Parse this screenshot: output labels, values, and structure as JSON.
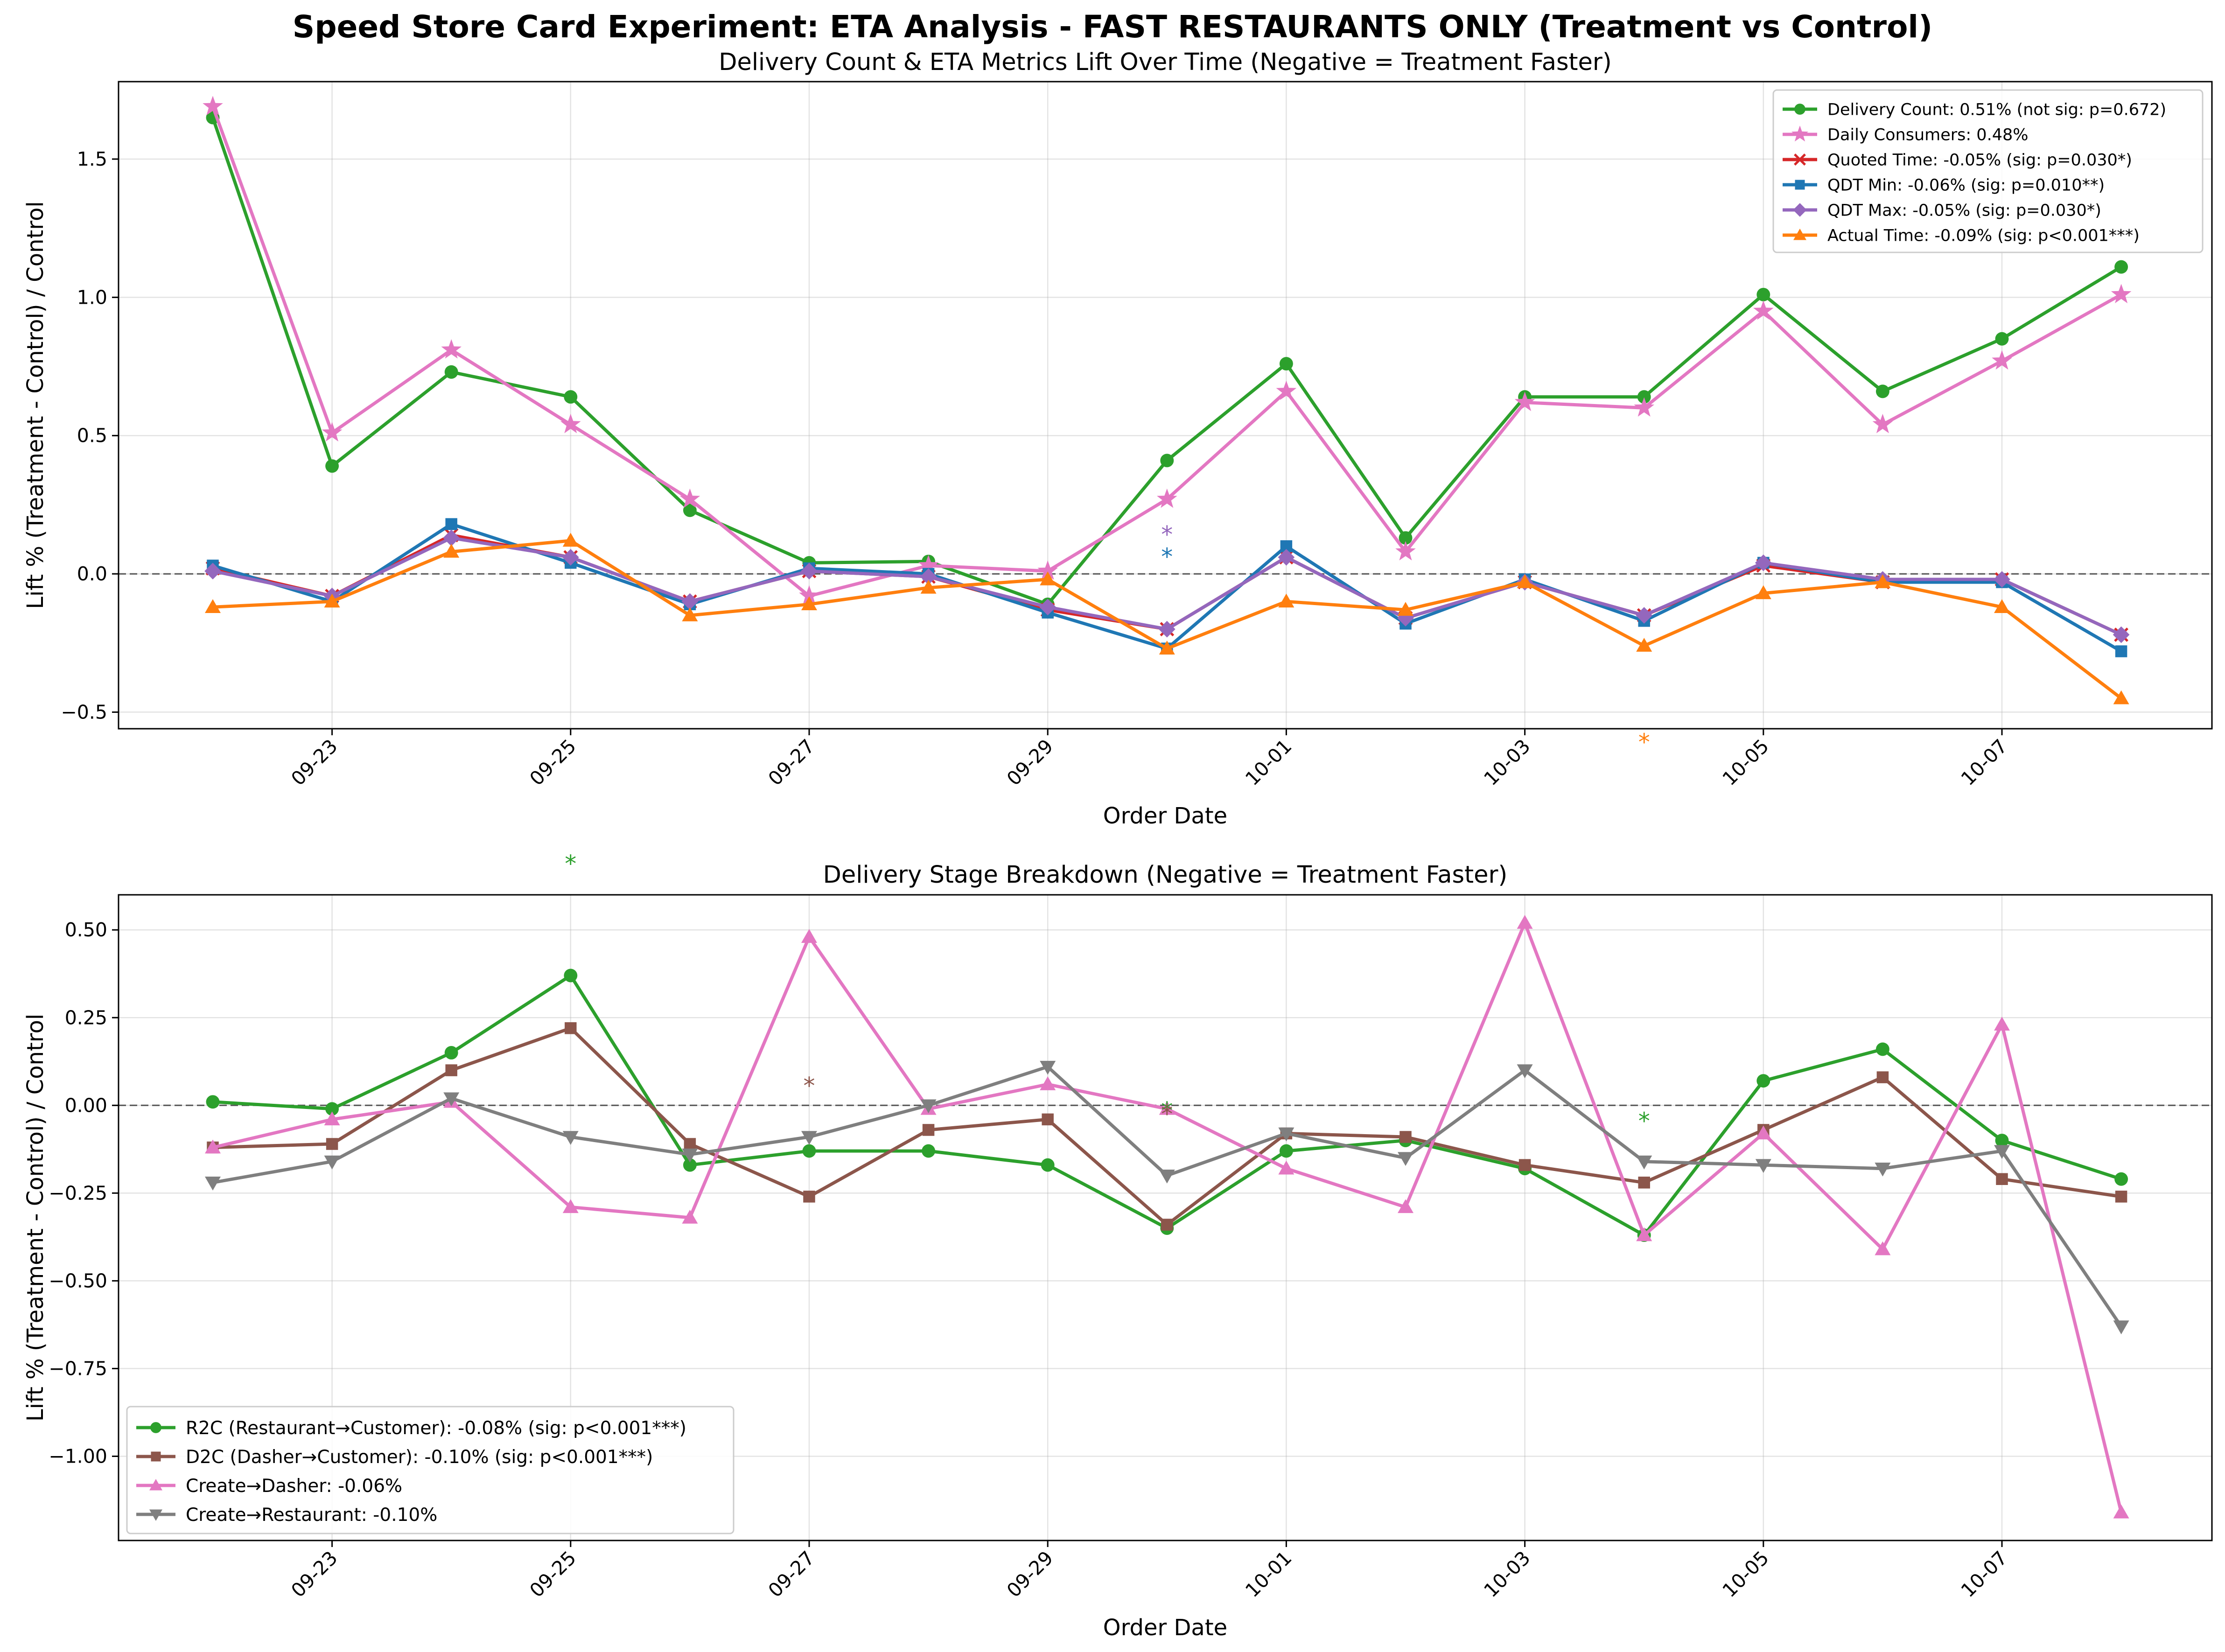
{
  "suptitle": "Speed Store Card Experiment: ETA Analysis - FAST RESTAURANTS ONLY (Treatment vs Control)",
  "chart_data": [
    {
      "type": "line",
      "title": "Delivery Count & ETA Metrics Lift Over Time (Negative = Treatment Faster)",
      "xlabel": "Order Date",
      "ylabel": "Lift % (Treatment - Control) / Control",
      "x": [
        "09-22",
        "09-23",
        "09-24",
        "09-25",
        "09-26",
        "09-27",
        "09-28",
        "09-29",
        "09-30",
        "10-01",
        "10-02",
        "10-03",
        "10-04",
        "10-05",
        "10-06",
        "10-07",
        "10-08"
      ],
      "xticks": [
        "09-23",
        "09-25",
        "09-27",
        "09-29",
        "10-01",
        "10-03",
        "10-05",
        "10-07"
      ],
      "yticks": [
        "1.5",
        "1.0",
        "0.5",
        "0.0",
        "−0.5"
      ],
      "ylim": [
        -0.56,
        1.78
      ],
      "grid": true,
      "legend_position": "top-right",
      "zero_line": true,
      "series": [
        {
          "name": "Delivery Count: 0.51% (not sig: p=0.672)",
          "color": "#2ca02c",
          "marker": "circle",
          "values": [
            1.65,
            0.39,
            0.73,
            0.64,
            0.23,
            0.04,
            0.045,
            -0.11,
            0.41,
            0.76,
            0.13,
            0.64,
            0.64,
            1.01,
            0.66,
            0.85,
            1.11
          ]
        },
        {
          "name": "Daily Consumers: 0.48%",
          "color": "#e377c2",
          "marker": "star",
          "values": [
            1.69,
            0.51,
            0.81,
            0.54,
            0.27,
            -0.08,
            0.03,
            0.01,
            0.27,
            0.66,
            0.08,
            0.62,
            0.6,
            0.95,
            0.54,
            0.77,
            1.01
          ]
        },
        {
          "name": "Quoted Time: -0.05% (sig: p=0.030*)",
          "color": "#d62728",
          "marker": "x",
          "values": [
            0.02,
            -0.08,
            0.14,
            0.06,
            -0.1,
            0.01,
            -0.01,
            -0.13,
            -0.2,
            0.06,
            -0.16,
            -0.03,
            -0.15,
            0.03,
            -0.03,
            -0.02,
            -0.22
          ]
        },
        {
          "name": "QDT Min: -0.06% (sig: p=0.010**)",
          "color": "#1f77b4",
          "marker": "square",
          "values": [
            0.03,
            -0.1,
            0.18,
            0.04,
            -0.11,
            0.02,
            0.0,
            -0.14,
            -0.27,
            0.1,
            -0.18,
            -0.02,
            -0.17,
            0.04,
            -0.03,
            -0.03,
            -0.28
          ]
        },
        {
          "name": "QDT Max: -0.05% (sig: p=0.030*)",
          "color": "#9467bd",
          "marker": "diamond",
          "values": [
            0.01,
            -0.08,
            0.13,
            0.06,
            -0.1,
            0.01,
            -0.01,
            -0.12,
            -0.2,
            0.06,
            -0.16,
            -0.03,
            -0.15,
            0.04,
            -0.02,
            -0.02,
            -0.22
          ]
        },
        {
          "name": "Actual Time: -0.09% (sig: p<0.001***)",
          "color": "#ff7f0e",
          "marker": "triangle-up",
          "values": [
            -0.12,
            -0.1,
            0.08,
            0.12,
            -0.15,
            -0.11,
            -0.05,
            -0.02,
            -0.27,
            -0.1,
            -0.13,
            -0.03,
            -0.26,
            -0.07,
            -0.03,
            -0.12,
            -0.45
          ]
        }
      ],
      "significance_markers": [
        {
          "x": "09-30",
          "y": 0.16,
          "color": "#9467bd",
          "text": "*"
        },
        {
          "x": "09-30",
          "y": 0.08,
          "color": "#1f77b4",
          "text": "*"
        },
        {
          "x": "10-04",
          "y": -0.59,
          "color": "#ff7f0e",
          "text": "*"
        },
        {
          "x": "09-25",
          "y": -1.03,
          "color": "#2ca02c",
          "text": "*"
        }
      ]
    },
    {
      "type": "line",
      "title": "Delivery Stage Breakdown (Negative = Treatment Faster)",
      "xlabel": "Order Date",
      "ylabel": "Lift % (Treatment - Control) / Control",
      "x": [
        "09-22",
        "09-23",
        "09-24",
        "09-25",
        "09-26",
        "09-27",
        "09-28",
        "09-29",
        "09-30",
        "10-01",
        "10-02",
        "10-03",
        "10-04",
        "10-05",
        "10-06",
        "10-07",
        "10-08"
      ],
      "xticks": [
        "09-23",
        "09-25",
        "09-27",
        "09-29",
        "10-01",
        "10-03",
        "10-05",
        "10-07"
      ],
      "yticks": [
        "0.50",
        "0.25",
        "0.00",
        "−0.25",
        "−0.50",
        "−0.75",
        "−1.00"
      ],
      "ylim": [
        -1.24,
        0.6
      ],
      "grid": true,
      "legend_position": "lower-left",
      "zero_line": true,
      "series": [
        {
          "name": "R2C (Restaurant→Customer): -0.08% (sig: p<0.001***)",
          "color": "#2ca02c",
          "marker": "circle",
          "values": [
            0.01,
            -0.01,
            0.15,
            0.37,
            -0.17,
            -0.13,
            -0.13,
            -0.17,
            -0.35,
            -0.13,
            -0.1,
            -0.18,
            -0.37,
            0.07,
            0.16,
            -0.1,
            -0.21
          ]
        },
        {
          "name": "D2C (Dasher→Customer): -0.10% (sig: p<0.001***)",
          "color": "#8c564b",
          "marker": "square",
          "values": [
            -0.12,
            -0.11,
            0.1,
            0.22,
            -0.11,
            -0.26,
            -0.07,
            -0.04,
            -0.34,
            -0.08,
            -0.09,
            -0.17,
            -0.22,
            -0.07,
            0.08,
            -0.21,
            -0.26
          ]
        },
        {
          "name": "Create→Dasher: -0.06%",
          "color": "#e377c2",
          "marker": "triangle-up",
          "values": [
            -0.12,
            -0.04,
            0.01,
            -0.29,
            -0.32,
            0.48,
            -0.01,
            0.06,
            -0.01,
            -0.18,
            -0.29,
            0.52,
            -0.37,
            -0.08,
            -0.41,
            0.23,
            -1.16
          ]
        },
        {
          "name": "Create→Restaurant: -0.10%",
          "color": "#7f7f7f",
          "marker": "triangle-down",
          "values": [
            -0.22,
            -0.16,
            0.02,
            -0.09,
            -0.14,
            -0.09,
            0.0,
            0.11,
            -0.2,
            -0.08,
            -0.15,
            0.1,
            -0.16,
            -0.17,
            -0.18,
            -0.13,
            -0.63
          ]
        }
      ],
      "significance_markers": [
        {
          "x": "09-27",
          "y": 0.07,
          "color": "#8c564b",
          "text": "*"
        },
        {
          "x": "09-30",
          "y": 0.0,
          "color": "#2ca02c",
          "text": "*"
        },
        {
          "x": "09-30",
          "y": -0.01,
          "color": "#8c564b",
          "text": "*"
        },
        {
          "x": "10-04",
          "y": -0.03,
          "color": "#2ca02c",
          "text": "*"
        }
      ]
    }
  ]
}
